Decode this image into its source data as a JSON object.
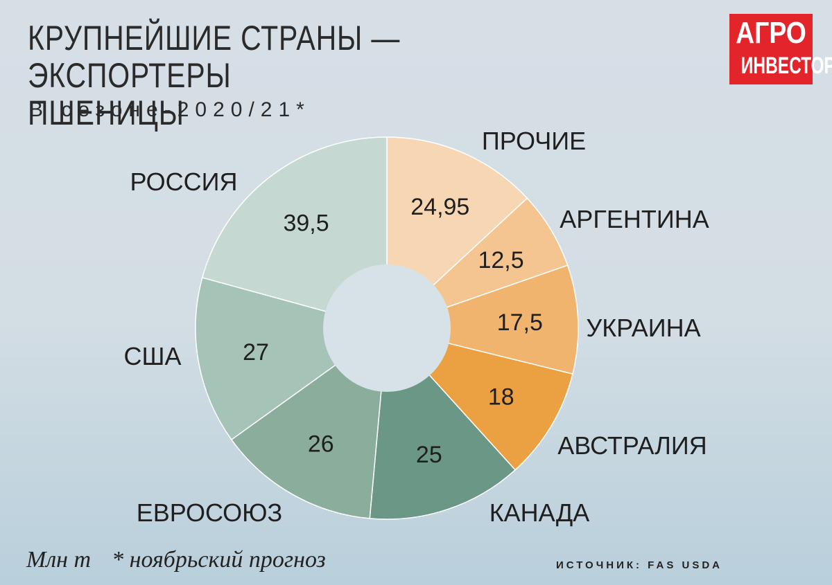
{
  "header": {
    "title": "КРУПНЕЙШИЕ СТРАНЫ — ЭКСПОРТЕРЫ\nПШЕНИЦЫ",
    "subtitle": "В сезоне-2020/21*"
  },
  "logo": {
    "line1": "АГРО",
    "line2": "ИНВЕСТОР"
  },
  "footer": {
    "unit": "Млн т",
    "note": "* ноябрьский прогноз",
    "source": "ИСТОЧНИК: FAS USDA"
  },
  "chart_data": {
    "type": "pie",
    "donut": true,
    "title": "КРУПНЕЙШИЕ СТРАНЫ — ЭКСПОРТЕРЫ ПШЕНИЦЫ",
    "subtitle": "В сезоне-2020/21*",
    "unit": "Млн т",
    "categories": [
      "ПРОЧИЕ",
      "АРГЕНТИНА",
      "УКРАИНА",
      "АВСТРАЛИЯ",
      "КАНАДА",
      "ЕВРОСОЮЗ",
      "США",
      "РОССИЯ"
    ],
    "values": [
      24.95,
      12.5,
      17.5,
      18,
      25,
      26,
      27,
      39.5
    ],
    "value_labels": [
      "24,95",
      "12,5",
      "17,5",
      "18",
      "25",
      "26",
      "27",
      "39,5"
    ],
    "colors": [
      "#f7d7b3",
      "#f4c590",
      "#f0b46e",
      "#eba042",
      "#6b9886",
      "#8aad9c",
      "#a6c3b8",
      "#c5d9d2"
    ],
    "legend": "labels outside slices"
  }
}
